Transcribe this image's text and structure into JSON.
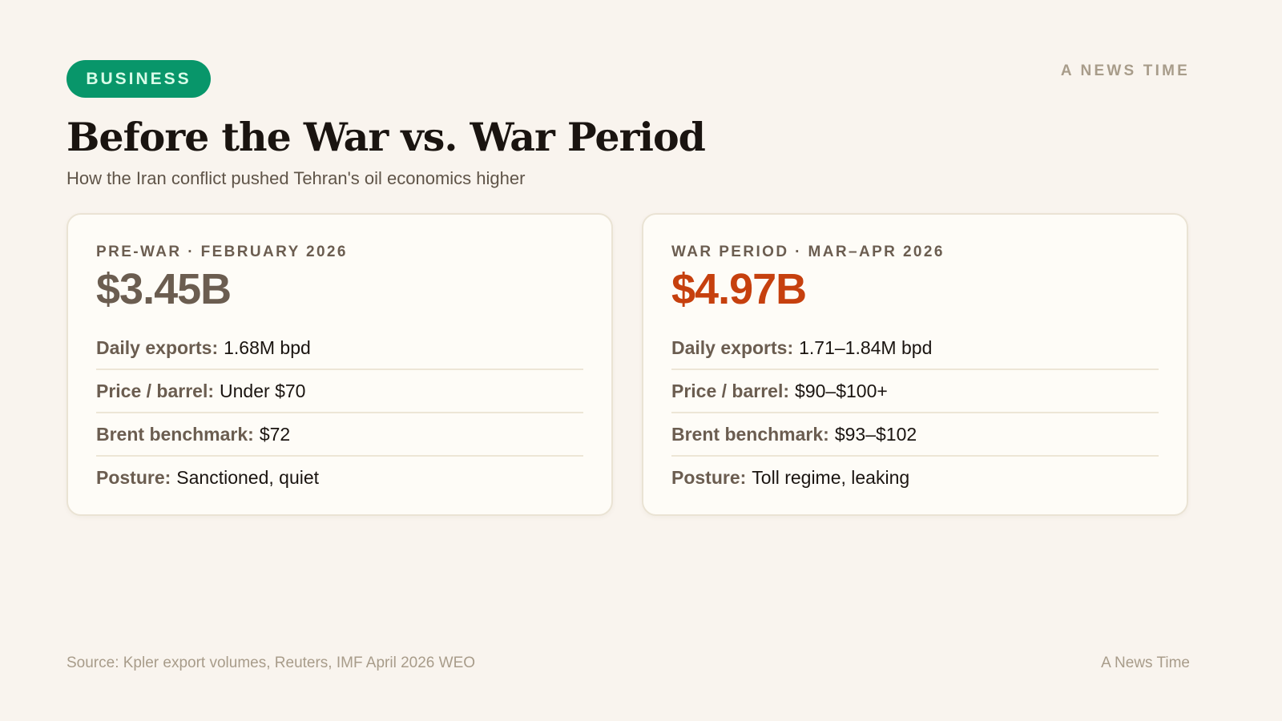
{
  "header": {
    "category_tag": "BUSINESS",
    "brand": "A NEWS TIME",
    "title": "Before the War vs. War Period",
    "subtitle": "How the Iran conflict pushed Tehran's oil economics higher"
  },
  "colors": {
    "tag_bg": "#08966a",
    "pre_war_amount": "#6b5d50",
    "war_amount": "#c6400e",
    "background": "#f9f4ee"
  },
  "cards": [
    {
      "label": "PRE-WAR · FEBRUARY 2026",
      "amount": "$3.45B",
      "rows": [
        {
          "key": "Daily exports:",
          "value": "1.68M bpd"
        },
        {
          "key": "Price / barrel:",
          "value": "Under $70"
        },
        {
          "key": "Brent benchmark:",
          "value": "$72"
        },
        {
          "key": "Posture:",
          "value": "Sanctioned, quiet"
        }
      ]
    },
    {
      "label": "WAR PERIOD · MAR–APR 2026",
      "amount": "$4.97B",
      "rows": [
        {
          "key": "Daily exports:",
          "value": "1.71–1.84M bpd"
        },
        {
          "key": "Price / barrel:",
          "value": "$90–$100+"
        },
        {
          "key": "Brent benchmark:",
          "value": "$93–$102"
        },
        {
          "key": "Posture:",
          "value": "Toll regime, leaking"
        }
      ]
    }
  ],
  "footer": {
    "source": "Source: Kpler export volumes, Reuters, IMF April 2026 WEO",
    "brand": "A News Time"
  }
}
